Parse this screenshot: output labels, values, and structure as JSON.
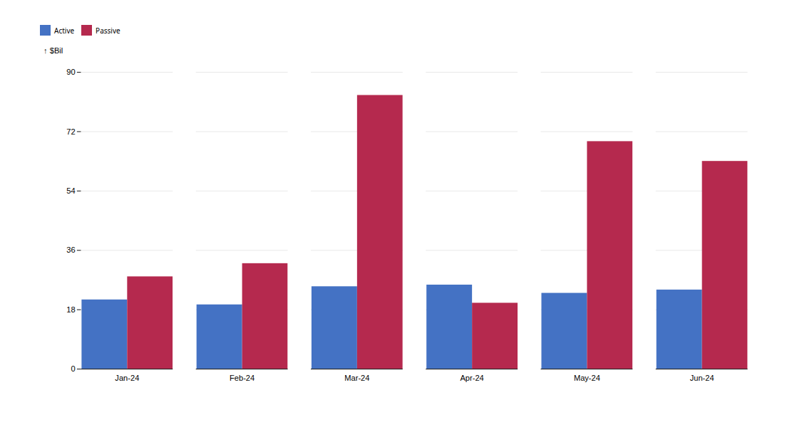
{
  "chart_data": {
    "type": "bar",
    "categories": [
      "Jan-24",
      "Feb-24",
      "Mar-24",
      "Apr-24",
      "May-24",
      "Jun-24"
    ],
    "series": [
      {
        "name": "Active",
        "color": "#4472C4",
        "values": [
          21,
          19.5,
          25,
          25.5,
          23,
          24
        ]
      },
      {
        "name": "Passive",
        "color": "#B5294E",
        "values": [
          28,
          32,
          83,
          20,
          69,
          63
        ]
      }
    ],
    "ylabel": "$Bil",
    "ylim": [
      0,
      90
    ],
    "yticks": [
      0,
      18,
      36,
      54,
      72,
      90
    ],
    "grid": true,
    "legend": "upper left"
  }
}
